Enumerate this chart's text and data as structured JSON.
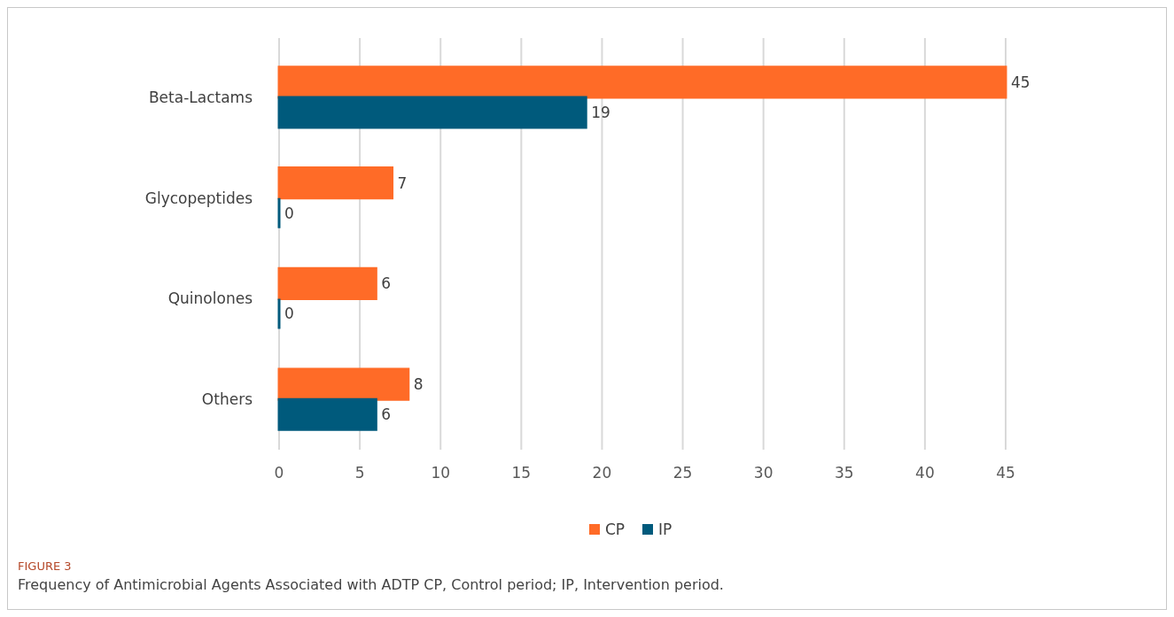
{
  "chart_data": {
    "type": "bar",
    "orientation": "horizontal",
    "categories": [
      "Beta-Lactams",
      "Glycopeptides",
      "Quinolones",
      "Others"
    ],
    "series": [
      {
        "name": "CP",
        "color": "#ff6b27",
        "values": [
          45,
          7,
          6,
          8
        ]
      },
      {
        "name": "IP",
        "color": "#005a7c",
        "values": [
          19,
          0,
          0,
          6
        ]
      }
    ],
    "xlim": [
      0,
      45
    ],
    "xticks": [
      0,
      5,
      10,
      15,
      20,
      25,
      30,
      35,
      40,
      45
    ],
    "grid": "x",
    "legend": "bottom",
    "data_labels": true,
    "annotations": [
      "FIGURE 3",
      "Frequency of Antimicrobial Agents Associated with ADTP CP, Control period; IP, Intervention period."
    ]
  }
}
